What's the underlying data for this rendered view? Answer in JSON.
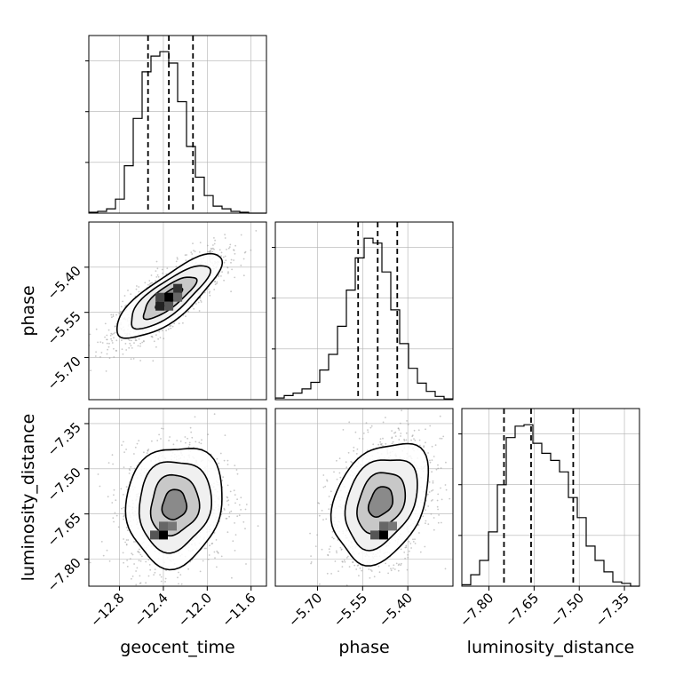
{
  "chart_data": {
    "type": "corner",
    "parameters": [
      "geocent_time",
      "phase",
      "luminosity_distance"
    ],
    "axis_ranges": {
      "geocent_time": [
        -13.08,
        -11.46
      ],
      "phase": [
        -5.84,
        -5.25
      ],
      "luminosity_distance": [
        -7.89,
        -7.3
      ]
    },
    "ticks": {
      "geocent_time": {
        "values": [
          -12.8,
          -12.4,
          -12.0,
          -11.6
        ],
        "labels": [
          "−12.8",
          "−12.4",
          "−12.0",
          "−11.6"
        ]
      },
      "phase": {
        "values": [
          -5.7,
          -5.55,
          -5.4
        ],
        "labels": [
          "−5.70",
          "−5.55",
          "−5.40"
        ]
      },
      "luminosity_distance": {
        "values": [
          -7.8,
          -7.65,
          -7.5,
          -7.35
        ],
        "labels": [
          "−7.80",
          "−7.65",
          "−7.50",
          "−7.35"
        ]
      }
    },
    "marginals": [
      {
        "parameter": "geocent_time",
        "bin_edges": [
          -13.08,
          -12.999,
          -12.918,
          -12.837,
          -12.756,
          -12.675,
          -12.594,
          -12.513,
          -12.432,
          -12.351,
          -12.27,
          -12.189,
          -12.108,
          -12.027,
          -11.946,
          -11.865,
          -11.784,
          -11.703,
          -11.622,
          -11.541,
          -11.46
        ],
        "counts": [
          1,
          2,
          5,
          16,
          54,
          108,
          161,
          179,
          184,
          171,
          127,
          76,
          41,
          20,
          8,
          5,
          2,
          1,
          0,
          0
        ],
        "quantiles": [
          -12.54,
          -12.35,
          -12.13
        ]
      },
      {
        "parameter": "phase",
        "bin_edges": [
          -5.84,
          -5.8105,
          -5.781,
          -5.7515,
          -5.722,
          -5.6925,
          -5.663,
          -5.6335,
          -5.604,
          -5.5745,
          -5.545,
          -5.5155,
          -5.486,
          -5.4565,
          -5.427,
          -5.3975,
          -5.368,
          -5.3385,
          -5.309,
          -5.2795,
          -5.25
        ],
        "counts": [
          2,
          5,
          8,
          13,
          21,
          36,
          55,
          89,
          133,
          172,
          196,
          190,
          155,
          109,
          68,
          38,
          20,
          10,
          4,
          1
        ],
        "quantiles": [
          -5.565,
          -5.5,
          -5.435
        ]
      },
      {
        "parameter": "luminosity_distance",
        "bin_edges": [
          -7.89,
          -7.8605,
          -7.831,
          -7.8015,
          -7.772,
          -7.7425,
          -7.713,
          -7.6835,
          -7.654,
          -7.6245,
          -7.595,
          -7.5655,
          -7.536,
          -7.5065,
          -7.477,
          -7.4475,
          -7.418,
          -7.3885,
          -7.359,
          -7.3295,
          -7.3
        ],
        "counts": [
          1,
          8,
          18,
          38,
          71,
          104,
          112,
          113,
          100,
          93,
          88,
          80,
          62,
          48,
          28,
          18,
          10,
          3,
          2,
          0
        ],
        "quantiles": [
          -7.75,
          -7.66,
          -7.52
        ]
      }
    ],
    "joint_2d": [
      {
        "x": "geocent_time",
        "y": "phase",
        "center": [
          -12.35,
          -5.5
        ],
        "sd": [
          0.24,
          0.07
        ],
        "correlation": 0.8,
        "contour_levels_sigma": [
          0.5,
          1.0,
          1.5,
          2.0
        ]
      },
      {
        "x": "geocent_time",
        "y": "luminosity_distance",
        "center": [
          -12.3,
          -7.62
        ],
        "sd": [
          0.22,
          0.1
        ],
        "correlation": 0.1,
        "density_peak": [
          -12.4,
          -7.72
        ],
        "contour_levels_sigma": [
          0.5,
          1.0,
          1.5,
          2.0
        ]
      },
      {
        "x": "phase",
        "y": "luminosity_distance",
        "center": [
          -5.49,
          -7.61
        ],
        "sd": [
          0.08,
          0.1
        ],
        "correlation": 0.3,
        "density_peak": [
          -5.48,
          -7.72
        ],
        "contour_levels_sigma": [
          0.5,
          1.0,
          1.5,
          2.0
        ]
      }
    ],
    "grid": true,
    "colors": {
      "line": "#000000",
      "grid": "#b0b0b0",
      "samples": "#9a9a9a",
      "density_dark": "#000000"
    }
  }
}
